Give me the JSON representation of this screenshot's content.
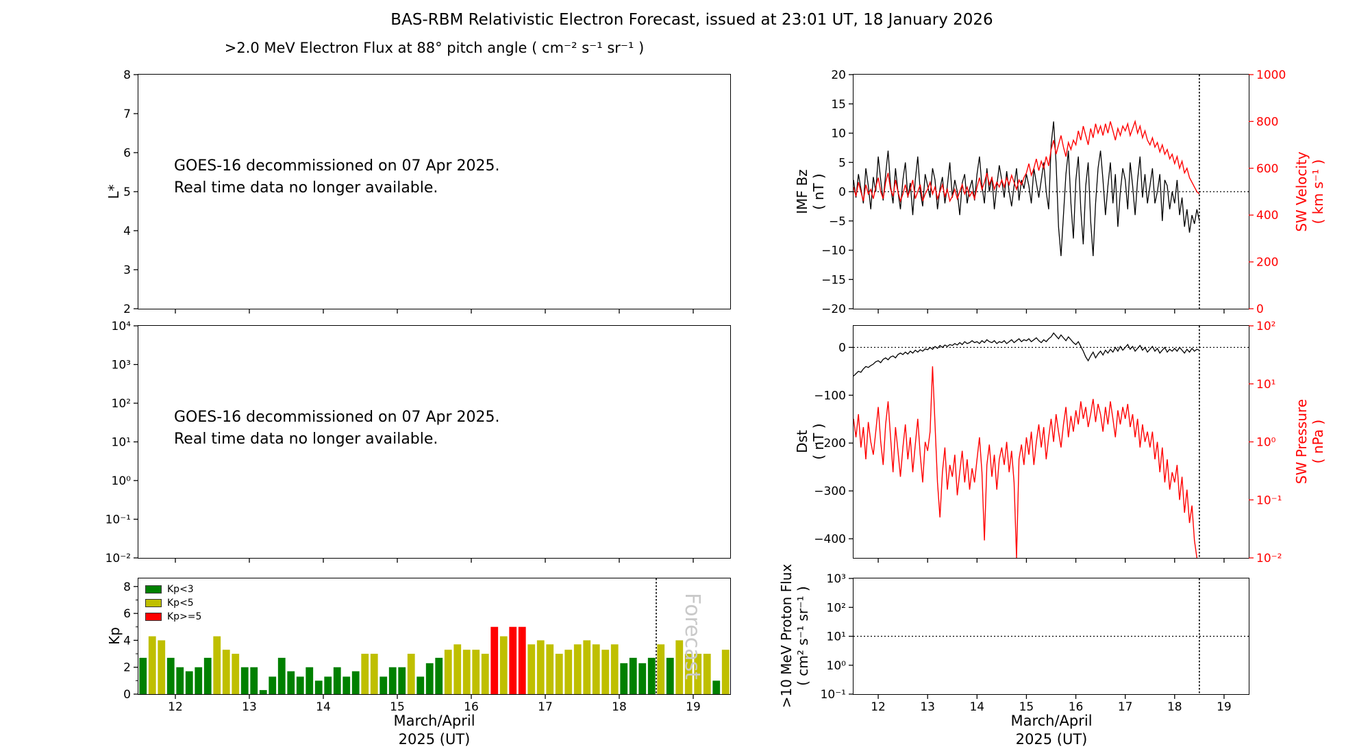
{
  "title": "BAS-RBM Relativistic Electron Forecast, issued at 23:01 UT, 18 January 2026",
  "colors": {
    "accent_red": "#ff0000",
    "forecast_gray": "#c9c9c9",
    "frame": "#000000"
  },
  "labels": {
    "l_star": "L*",
    "kp": "Kp",
    "imf": [
      "IMF Bz",
      "( nT )"
    ],
    "sw_velocity": [
      "SW Velocity",
      "( km s⁻¹ )"
    ],
    "dst": [
      "Dst",
      "( nT )"
    ],
    "sw_pressure": [
      "SW Pressure",
      "( nPa )"
    ],
    "proton": [
      ">10 MeV Proton Flux",
      "( cm² s⁻¹ sr⁻¹ )"
    ]
  },
  "chart_data": [
    {
      "id": "electron-flux",
      "type": "line",
      "title": ">2.0 MeV Electron Flux at 88° pitch angle ( cm⁻² s⁻¹ sr⁻¹ )",
      "x": {
        "min": 11.5,
        "max": 19.5,
        "ticks": [
          12,
          13,
          14,
          15,
          16,
          17,
          18,
          19
        ]
      },
      "y": {
        "scale": "linear",
        "min": 2,
        "max": 8,
        "ticks": [
          2,
          3,
          4,
          5,
          6,
          7,
          8
        ],
        "labels": [
          "2",
          "3",
          "4",
          "5",
          "6",
          "7",
          "8"
        ]
      },
      "ylabel": "L*",
      "series": [],
      "annotation": [
        "GOES-16 decommissioned on 07 Apr 2025.",
        "Real time data no longer available."
      ]
    },
    {
      "id": "electron-flux-log",
      "type": "line",
      "x": {
        "min": 11.5,
        "max": 19.5,
        "ticks": [
          12,
          13,
          14,
          15,
          16,
          17,
          18,
          19
        ]
      },
      "y": {
        "scale": "log",
        "min": 0.01,
        "max": 10000,
        "ticks": [
          0.01,
          0.1,
          1,
          10,
          100,
          1000,
          10000
        ],
        "labels": [
          "10⁻²",
          "10⁻¹",
          "10⁰",
          "10¹",
          "10²",
          "10³",
          "10⁴"
        ]
      },
      "series": [],
      "annotation": [
        "GOES-16 decommissioned on 07 Apr 2025.",
        "Real time data no longer available."
      ]
    },
    {
      "id": "kp",
      "type": "bar",
      "ylabel": "Kp",
      "x": {
        "min": 11.5,
        "max": 19.5,
        "ticks": [
          12,
          13,
          14,
          15,
          16,
          17,
          18,
          19
        ],
        "labels": [
          "12",
          "13",
          "14",
          "15",
          "16",
          "17",
          "18",
          "19"
        ]
      },
      "y": {
        "scale": "linear",
        "min": 0,
        "max": 8.6,
        "ticks": [
          0,
          2,
          4,
          6,
          8
        ],
        "labels": [
          "0",
          "2",
          "4",
          "6",
          "8"
        ],
        "minor": [
          1,
          3,
          5,
          7
        ]
      },
      "xlabel": [
        "March/April",
        "2025 (UT)"
      ],
      "bars": {
        "x0": 11.5,
        "step": 0.125,
        "width": 0.1,
        "values": [
          2.7,
          4.3,
          4.0,
          2.7,
          2.0,
          1.7,
          2.0,
          2.7,
          4.3,
          3.3,
          3.0,
          2.0,
          2.0,
          0.3,
          1.3,
          2.7,
          1.7,
          1.3,
          2.0,
          1.0,
          1.3,
          2.0,
          1.3,
          1.7,
          3.0,
          3.0,
          1.3,
          2.0,
          2.0,
          3.0,
          1.3,
          2.3,
          2.7,
          3.3,
          3.7,
          3.3,
          3.3,
          3.0,
          5.0,
          4.3,
          5.0,
          5.0,
          3.7,
          4.0,
          3.7,
          3.0,
          3.3,
          3.7,
          4.0,
          3.7,
          3.3,
          3.7,
          2.3,
          2.7,
          2.3,
          2.7,
          3.7,
          2.7,
          4.0,
          3.0,
          3.0,
          3.0,
          1.0,
          3.3
        ]
      },
      "thresholds": {
        "green_lt": 3,
        "green_color": "#008000",
        "yellow_lt": 5,
        "yellow_color": "#bfbf00",
        "red_color": "#ff0000"
      },
      "legend": [
        {
          "label": "Kp<3",
          "color": "#008000"
        },
        {
          "label": "Kp<5",
          "color": "#bfbf00"
        },
        {
          "label": "Kp>=5",
          "color": "#ff0000"
        }
      ],
      "vlines": [
        18.5
      ],
      "forecast": {
        "text": "Forecast",
        "x": 18.9,
        "color": "#c9c9c9",
        "size": 30
      }
    },
    {
      "id": "imf-sw",
      "type": "line",
      "x": {
        "min": 11.5,
        "max": 19.5,
        "ticks": [
          12,
          13,
          14,
          15,
          16,
          17,
          18,
          19
        ]
      },
      "y": {
        "scale": "linear",
        "min": -20,
        "max": 20,
        "ticks": [
          -20,
          -15,
          -10,
          -5,
          0,
          5,
          10,
          15,
          20
        ],
        "labels": [
          "−20",
          "−15",
          "−10",
          "−5",
          "0",
          "5",
          "10",
          "15",
          "20"
        ]
      },
      "y_right": {
        "scale": "linear",
        "min": 0,
        "max": 1000,
        "ticks": [
          0,
          200,
          400,
          600,
          800,
          1000
        ],
        "labels": [
          "0",
          "200",
          "400",
          "600",
          "800",
          "1000"
        ],
        "color": "#ff0000"
      },
      "hlines": [
        {
          "y": 0,
          "axis": "left"
        }
      ],
      "vlines": [
        18.5
      ],
      "series": [
        {
          "name": "IMF Bz",
          "axis": "left",
          "color": "#000000",
          "width": 1.3,
          "x0": 11.5,
          "dx": 0.05,
          "y": [
            2,
            -1,
            3,
            0.5,
            -2,
            4,
            1,
            -3,
            2.5,
            0,
            6,
            2,
            -1.5,
            3,
            7,
            1,
            -2,
            4,
            0,
            -3,
            2,
            5,
            -1,
            1.5,
            -4,
            2,
            6,
            0,
            -2.5,
            3,
            1,
            -1,
            4,
            2,
            -3,
            0.5,
            2.5,
            -2,
            1,
            5,
            -1,
            2,
            0,
            -4,
            1.5,
            3,
            -2,
            0.5,
            2,
            -1.5,
            3,
            6,
            1,
            -2,
            4,
            0,
            2.5,
            -3,
            1,
            4.5,
            2,
            -1,
            3.5,
            0,
            -2.5,
            1,
            4,
            -1.5,
            2,
            0.5,
            3,
            1,
            -2,
            4,
            1.5,
            -1,
            2,
            5,
            0,
            -3,
            8,
            12,
            5,
            -6,
            -11,
            -4,
            3,
            7,
            -2,
            -8,
            2,
            6,
            -3,
            -9,
            1,
            5,
            -5,
            -11,
            -2,
            4,
            7,
            2,
            -4,
            1,
            5,
            -2,
            3,
            -6,
            0,
            4,
            2,
            -3,
            5,
            1,
            -4,
            2,
            6,
            -1,
            3,
            -2,
            1,
            4,
            -2,
            0,
            3,
            -5,
            2,
            1,
            -3,
            0,
            -2,
            2,
            -4,
            -1,
            -6,
            -3,
            -7,
            -4,
            -5.5,
            -3,
            -5
          ]
        },
        {
          "name": "SW Velocity",
          "axis": "right",
          "color": "#ff0000",
          "width": 1.4,
          "x0": 11.5,
          "dx": 0.05,
          "y": [
            520,
            480,
            540,
            500,
            460,
            530,
            490,
            510,
            470,
            520,
            560,
            500,
            470,
            540,
            580,
            510,
            480,
            550,
            500,
            460,
            490,
            530,
            480,
            510,
            550,
            470,
            500,
            530,
            460,
            490,
            510,
            540,
            490,
            520,
            470,
            500,
            530,
            480,
            510,
            460,
            480,
            510,
            470,
            500,
            530,
            490,
            520,
            480,
            500,
            470,
            520,
            560,
            510,
            540,
            580,
            530,
            560,
            510,
            540,
            520,
            550,
            520,
            560,
            530,
            570,
            540,
            510,
            550,
            530,
            560,
            580,
            620,
            570,
            600,
            640,
            590,
            630,
            600,
            650,
            610,
            680,
            720,
            660,
            700,
            740,
            690,
            650,
            710,
            680,
            720,
            700,
            760,
            720,
            780,
            740,
            700,
            770,
            730,
            790,
            750,
            780,
            740,
            790,
            750,
            800,
            760,
            720,
            770,
            740,
            780,
            760,
            790,
            740,
            770,
            800,
            750,
            780,
            730,
            760,
            720,
            700,
            730,
            690,
            710,
            670,
            700,
            660,
            680,
            640,
            660,
            620,
            650,
            600,
            630,
            580,
            600,
            560,
            540,
            520,
            500,
            490
          ]
        }
      ]
    },
    {
      "id": "dst-sw",
      "type": "line",
      "x": {
        "min": 11.5,
        "max": 19.5,
        "ticks": [
          12,
          13,
          14,
          15,
          16,
          17,
          18,
          19
        ]
      },
      "y": {
        "scale": "linear",
        "min": -440,
        "max": 45,
        "ticks": [
          0,
          -100,
          -200,
          -300,
          -400
        ],
        "labels": [
          "0",
          "−100",
          "−200",
          "−300",
          "−400"
        ]
      },
      "y_right": {
        "scale": "log",
        "min": 0.01,
        "max": 100,
        "ticks": [
          0.01,
          0.1,
          1,
          10,
          100
        ],
        "labels": [
          "10⁻²",
          "10⁻¹",
          "10⁰",
          "10¹",
          "10²"
        ],
        "color": "#ff0000"
      },
      "hlines": [
        {
          "y": 0,
          "axis": "left"
        }
      ],
      "vlines": [
        18.5
      ],
      "series": [
        {
          "name": "SW Pressure",
          "axis": "right",
          "color": "#ff0000",
          "width": 1.4,
          "x0": 11.5,
          "dx": 0.05,
          "y": [
            2.5,
            1.2,
            3.0,
            0.8,
            1.8,
            0.5,
            2.2,
            1.0,
            0.6,
            1.5,
            4.0,
            1.0,
            0.4,
            2.0,
            5.0,
            1.2,
            0.3,
            1.8,
            0.7,
            0.25,
            0.8,
            2.0,
            0.5,
            1.2,
            0.3,
            0.9,
            2.5,
            0.6,
            0.2,
            1.0,
            0.7,
            1.5,
            20.0,
            2.0,
            0.2,
            0.05,
            0.3,
            0.8,
            0.15,
            0.4,
            0.25,
            0.6,
            0.12,
            0.3,
            0.7,
            0.2,
            0.5,
            0.15,
            0.35,
            0.2,
            0.5,
            1.2,
            0.3,
            0.02,
            0.4,
            0.9,
            0.25,
            0.6,
            0.15,
            0.5,
            0.8,
            0.4,
            1.0,
            0.3,
            0.7,
            0.2,
            0.01,
            0.5,
            0.9,
            0.4,
            1.2,
            0.6,
            1.5,
            0.4,
            1.0,
            2.0,
            0.8,
            1.8,
            0.5,
            1.2,
            2.5,
            1.0,
            3.0,
            1.5,
            0.8,
            2.0,
            4.0,
            1.2,
            2.8,
            1.5,
            3.5,
            2.0,
            5.0,
            2.5,
            4.0,
            1.8,
            3.0,
            5.5,
            2.2,
            4.5,
            3.0,
            1.5,
            4.0,
            2.0,
            5.0,
            2.5,
            1.2,
            3.5,
            2.0,
            4.0,
            2.5,
            4.5,
            1.8,
            3.0,
            1.2,
            2.5,
            0.8,
            2.0,
            1.0,
            1.5,
            0.8,
            1.5,
            0.5,
            1.0,
            0.3,
            0.8,
            0.2,
            0.5,
            0.15,
            0.3,
            0.2,
            0.4,
            0.1,
            0.25,
            0.06,
            0.15,
            0.04,
            0.08,
            0.02,
            0.01,
            0.008
          ]
        },
        {
          "name": "Dst",
          "axis": "left",
          "color": "#000000",
          "width": 1.3,
          "x0": 11.5,
          "dx": 0.05,
          "y": [
            -60,
            -55,
            -50,
            -52,
            -45,
            -40,
            -42,
            -38,
            -35,
            -30,
            -28,
            -32,
            -25,
            -22,
            -26,
            -20,
            -18,
            -22,
            -15,
            -12,
            -15,
            -10,
            -14,
            -8,
            -12,
            -6,
            -10,
            -5,
            -8,
            -3,
            -5,
            0,
            -4,
            2,
            -2,
            4,
            0,
            5,
            2,
            6,
            4,
            8,
            5,
            10,
            6,
            12,
            8,
            10,
            14,
            10,
            12,
            8,
            14,
            10,
            16,
            12,
            10,
            14,
            8,
            12,
            10,
            14,
            8,
            12,
            16,
            10,
            14,
            18,
            12,
            16,
            14,
            18,
            12,
            16,
            20,
            14,
            10,
            16,
            12,
            18,
            22,
            30,
            24,
            18,
            26,
            20,
            14,
            22,
            16,
            10,
            6,
            12,
            2,
            -8,
            -20,
            -28,
            -18,
            -10,
            -22,
            -14,
            -8,
            -16,
            -6,
            -12,
            -4,
            -10,
            0,
            -8,
            2,
            -6,
            0,
            6,
            -4,
            2,
            -8,
            -2,
            4,
            -6,
            0,
            -10,
            -4,
            2,
            -8,
            -2,
            -12,
            -6,
            0,
            -10,
            -4,
            -8,
            -2,
            -8,
            0,
            -6,
            -12,
            -4,
            -10,
            -2,
            -8,
            -4,
            -6
          ]
        }
      ]
    },
    {
      "id": "proton",
      "type": "line",
      "x": {
        "min": 11.5,
        "max": 19.5,
        "ticks": [
          12,
          13,
          14,
          15,
          16,
          17,
          18,
          19
        ],
        "labels": [
          "12",
          "13",
          "14",
          "15",
          "16",
          "17",
          "18",
          "19"
        ]
      },
      "y": {
        "scale": "log",
        "min": 0.1,
        "max": 1000,
        "ticks": [
          0.1,
          1,
          10,
          100,
          1000
        ],
        "labels": [
          "10⁻¹",
          "10⁰",
          "10¹",
          "10²",
          "10³"
        ]
      },
      "xlabel": [
        "March/April",
        "2025 (UT)"
      ],
      "hlines": [
        {
          "y": 10,
          "axis": "left"
        }
      ],
      "vlines": [
        18.5
      ],
      "series": []
    }
  ]
}
